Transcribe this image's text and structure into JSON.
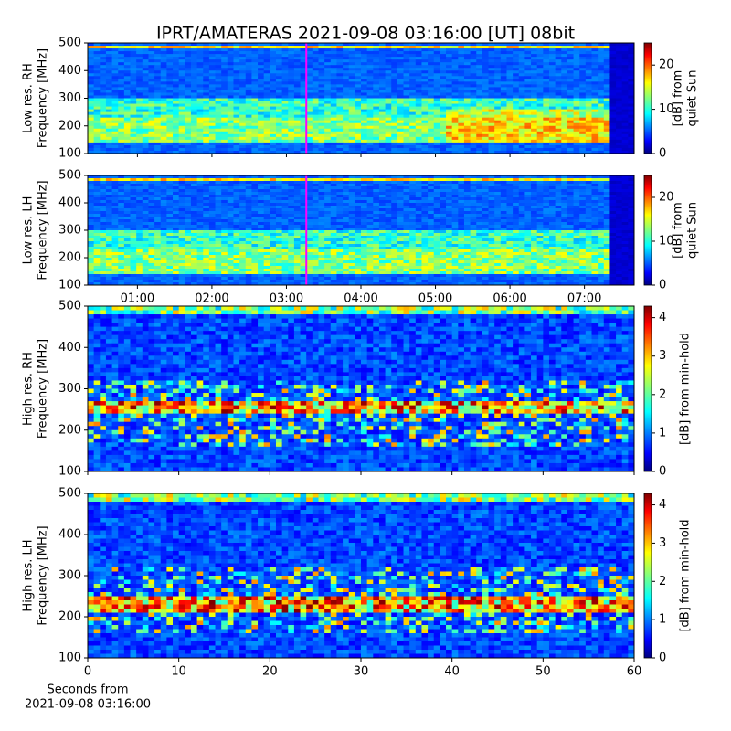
{
  "title": "IPRT/AMATERAS 2021-09-08 03:16:00 [UT]   08bit",
  "chart_data": [
    {
      "type": "heatmap",
      "ylabel": [
        "Low res. RH",
        "Frequency [MHz]"
      ],
      "ylim": [
        100,
        500
      ],
      "yticks": [
        100,
        200,
        300,
        400,
        500
      ],
      "xlim": [
        0.333,
        7.667
      ],
      "xticks": [
        1,
        2,
        3,
        4,
        5,
        6,
        7
      ],
      "xtick_labels": false,
      "marker_x": 3.267,
      "marker_color": "#ff00ff",
      "colorbar": {
        "label": [
          "[dB] from",
          "quiet Sun"
        ],
        "lim": [
          0,
          25
        ],
        "ticks": [
          0,
          10,
          20
        ]
      }
    },
    {
      "type": "heatmap",
      "ylabel": [
        "Low res. LH",
        "Frequency [MHz]"
      ],
      "ylim": [
        100,
        500
      ],
      "yticks": [
        100,
        200,
        300,
        400,
        500
      ],
      "xlim": [
        0.333,
        7.667
      ],
      "xticks": [
        {
          "value": 1,
          "label": "01:00"
        },
        {
          "value": 2,
          "label": "02:00"
        },
        {
          "value": 3,
          "label": "03:00"
        },
        {
          "value": 4,
          "label": "04:00"
        },
        {
          "value": 5,
          "label": "05:00"
        },
        {
          "value": 6,
          "label": "06:00"
        },
        {
          "value": 7,
          "label": "07:00"
        }
      ],
      "xtick_labels": true,
      "marker_x": 3.267,
      "marker_color": "#ff00ff",
      "colorbar": {
        "label": [
          "[dB] from",
          "quiet Sun"
        ],
        "lim": [
          0,
          25
        ],
        "ticks": [
          0,
          10,
          20
        ]
      }
    },
    {
      "type": "heatmap",
      "ylabel": [
        "High res. RH",
        "Frequency [MHz]"
      ],
      "ylim": [
        100,
        500
      ],
      "yticks": [
        100,
        200,
        300,
        400,
        500
      ],
      "xlim": [
        0,
        60
      ],
      "xticks": [
        0,
        10,
        20,
        30,
        40,
        50,
        60
      ],
      "xtick_labels": false,
      "colorbar": {
        "label": [
          "[dB] from min-hold"
        ],
        "lim": [
          0,
          4.3
        ],
        "ticks": [
          0,
          1,
          2,
          3,
          4
        ]
      }
    },
    {
      "type": "heatmap",
      "ylabel": [
        "High res. LH",
        "Frequency [MHz]"
      ],
      "ylim": [
        100,
        500
      ],
      "yticks": [
        100,
        200,
        300,
        400,
        500
      ],
      "xlim": [
        0,
        60
      ],
      "xticks": [
        0,
        10,
        20,
        30,
        40,
        50,
        60
      ],
      "xtick_labels": true,
      "xlabel": [
        "Seconds from",
        "2021-09-08 03:16:00"
      ],
      "colorbar": {
        "label": [
          "[dB] from min-hold"
        ],
        "lim": [
          0,
          4.3
        ],
        "ticks": [
          0,
          1,
          2,
          3,
          4
        ]
      }
    }
  ]
}
